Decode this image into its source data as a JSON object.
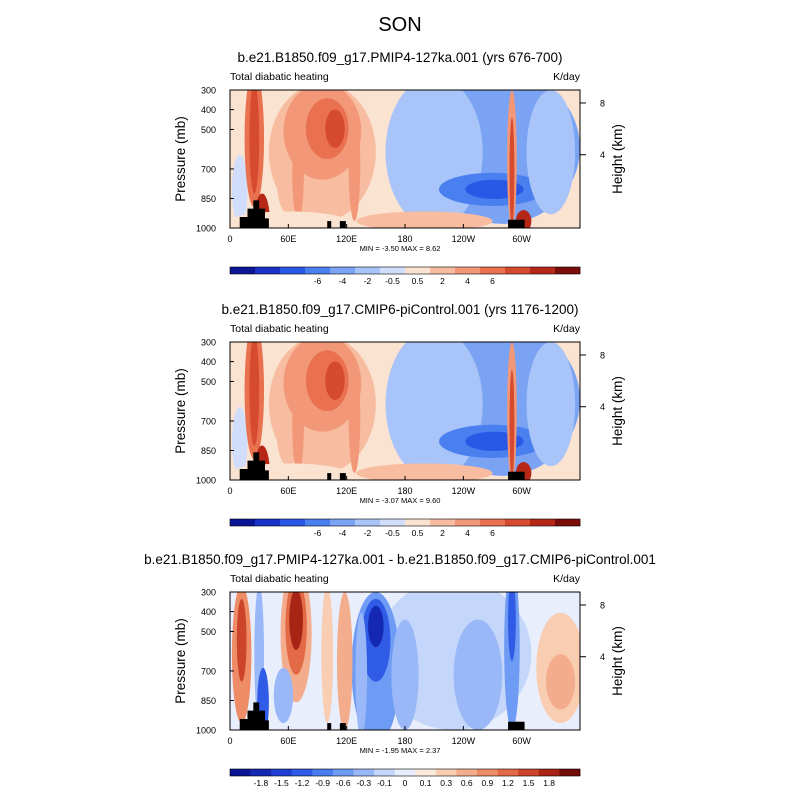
{
  "page_title": "SON",
  "chart_data": [
    {
      "type": "heatmap",
      "title": "b.e21.B1850.f09_g17.PMIP4-127ka.001 (yrs 676-700)",
      "variable_label": "Total diabatic heating",
      "units_label": "K/day",
      "ylabel": "Pressure (mb)",
      "y2label": "Height (km)",
      "x_ticks": [
        "0",
        "60E",
        "120E",
        "180",
        "120W",
        "60W"
      ],
      "y_ticks": [
        "300",
        "400",
        "500",
        "700",
        "850",
        "1000"
      ],
      "y2_ticks": [
        "8",
        "4"
      ],
      "stats": "MIN = -3.50  MAX =  8.62",
      "colorbar_labels": [
        "-6",
        "-4",
        "-2",
        "-0.5",
        "0.5",
        "2",
        "4",
        "6"
      ],
      "colorbar_colors": [
        "#0a1596",
        "#1832c8",
        "#2a58e6",
        "#4a7ff0",
        "#7aa3f4",
        "#a8c4f8",
        "#d0defb",
        "#fbe3d2",
        "#f8bda0",
        "#f29878",
        "#e9714f",
        "#d64a30",
        "#b52818",
        "#7a0d0a"
      ]
    },
    {
      "type": "heatmap",
      "title": "b.e21.B1850.f09_g17.CMIP6-piControl.001 (yrs 1176-1200)",
      "variable_label": "Total diabatic heating",
      "units_label": "K/day",
      "ylabel": "Pressure (mb)",
      "y2label": "Height (km)",
      "x_ticks": [
        "0",
        "60E",
        "120E",
        "180",
        "120W",
        "60W"
      ],
      "y_ticks": [
        "300",
        "400",
        "500",
        "700",
        "850",
        "1000"
      ],
      "y2_ticks": [
        "8",
        "4"
      ],
      "stats": "MIN = -3.07  MAX =  9.60",
      "colorbar_labels": [
        "-6",
        "-4",
        "-2",
        "-0.5",
        "0.5",
        "2",
        "4",
        "6"
      ],
      "colorbar_colors": [
        "#0a1596",
        "#1832c8",
        "#2a58e6",
        "#4a7ff0",
        "#7aa3f4",
        "#a8c4f8",
        "#d0defb",
        "#fbe3d2",
        "#f8bda0",
        "#f29878",
        "#e9714f",
        "#d64a30",
        "#b52818",
        "#7a0d0a"
      ]
    },
    {
      "type": "heatmap",
      "title": "b.e21.B1850.f09_g17.PMIP4-127ka.001 - b.e21.B1850.f09_g17.CMIP6-piControl.001",
      "variable_label": "Total diabatic heating",
      "units_label": "K/day",
      "ylabel": "Pressure (mb)",
      "y2label": "Height (km)",
      "x_ticks": [
        "0",
        "60E",
        "120E",
        "180",
        "120W",
        "60W"
      ],
      "y_ticks": [
        "300",
        "400",
        "500",
        "700",
        "850",
        "1000"
      ],
      "y2_ticks": [
        "8",
        "4"
      ],
      "stats": "MIN = -1.95  MAX =  2.37",
      "colorbar_labels": [
        "-1.8",
        "-1.5",
        "-1.2",
        "-0.9",
        "-0.6",
        "-0.3",
        "-0.1",
        "0",
        "0.1",
        "0.3",
        "0.6",
        "0.9",
        "1.2",
        "1.5",
        "1.8"
      ],
      "colorbar_colors": [
        "#0a1596",
        "#1428b4",
        "#1e3fd2",
        "#2f5be6",
        "#4a7cf0",
        "#6e9bf4",
        "#9ab8f7",
        "#c4d6fa",
        "#e8eefc",
        "#fbe9dc",
        "#f8cdb2",
        "#f4ad8c",
        "#ee8c68",
        "#e36a46",
        "#cc452a",
        "#a82516",
        "#730c08"
      ]
    }
  ]
}
